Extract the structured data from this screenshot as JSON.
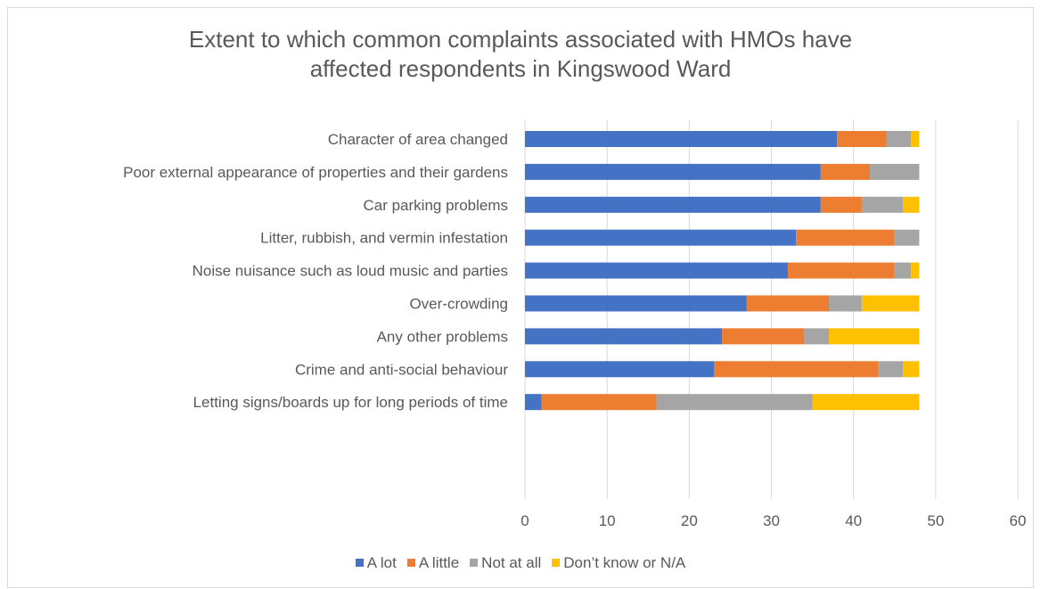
{
  "chart_data": {
    "type": "bar",
    "orientation": "horizontal",
    "stacked": true,
    "title": "Extent to which common complaints associated with HMOs have affected respondents in Kingswood Ward",
    "title_lines": [
      "Extent to which common complaints associated with HMOs have",
      "affected respondents in Kingswood Ward"
    ],
    "xlabel": "",
    "ylabel": "",
    "xlim": [
      0,
      60
    ],
    "x_ticks": [
      0,
      10,
      20,
      30,
      40,
      50,
      60
    ],
    "grid": true,
    "legend_position": "bottom",
    "categories": [
      "Character of area changed",
      "Poor external appearance of properties and their gardens",
      "Car parking problems",
      "Litter, rubbish, and vermin infestation",
      "Noise nuisance such as loud music and parties",
      "Over-crowding",
      "Any other problems",
      "Crime and anti-social behaviour",
      "Letting signs/boards up for long periods of time"
    ],
    "series": [
      {
        "name": "A lot",
        "color": "#4472c4",
        "values": [
          38,
          36,
          36,
          33,
          32,
          27,
          24,
          23,
          2
        ]
      },
      {
        "name": "A little",
        "color": "#ed7d31",
        "values": [
          6,
          6,
          5,
          12,
          13,
          10,
          10,
          20,
          14
        ]
      },
      {
        "name": "Not at all",
        "color": "#a5a5a5",
        "values": [
          3,
          6,
          5,
          3,
          2,
          4,
          3,
          3,
          19
        ]
      },
      {
        "name": "Don’t know or N/A",
        "color": "#ffc000",
        "values": [
          1,
          0,
          2,
          0,
          1,
          7,
          11,
          2,
          13
        ]
      }
    ]
  },
  "colors": {
    "text": "#595959",
    "grid": "#d9d9d9",
    "border": "#d9d9d9"
  }
}
